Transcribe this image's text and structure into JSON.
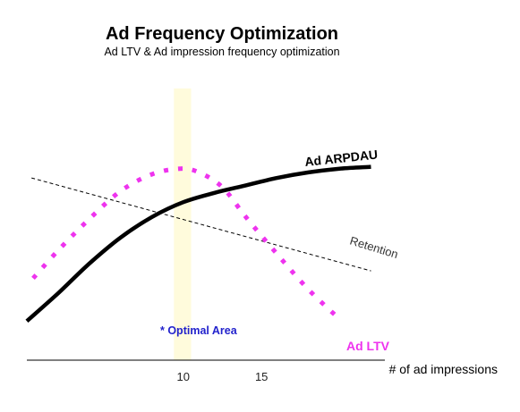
{
  "chart_data": {
    "type": "line",
    "title": "Ad Frequency Optimization",
    "subtitle": "Ad LTV & Ad impression frequency optimization",
    "xlabel": "# of ad impressions",
    "ylabel": "",
    "x_ticks": [
      10,
      15
    ],
    "xlim": [
      0,
      23
    ],
    "ylim": [
      0,
      100
    ],
    "grid": false,
    "legend": "none",
    "optimal_area": {
      "label": "* Optimal Area",
      "x_range": [
        9.4,
        10.5
      ]
    },
    "series": [
      {
        "name": "Ad ARPDAU",
        "style": "solid",
        "color": "#000000",
        "x": [
          0,
          2,
          4,
          6,
          8,
          10,
          12,
          14,
          16,
          18,
          20,
          22
        ],
        "y": [
          9,
          24,
          40,
          54,
          65,
          73,
          78,
          82,
          86,
          89,
          91,
          92
        ]
      },
      {
        "name": "Ad LTV",
        "style": "dotted",
        "color": "#ee33ee",
        "x": [
          0.4,
          2,
          4,
          6,
          8,
          9.8,
          11,
          12.5,
          14,
          16,
          18,
          20
        ],
        "y": [
          32,
          47,
          64,
          79,
          88,
          91,
          89,
          81,
          65,
          45,
          26,
          10
        ]
      },
      {
        "name": "Retention",
        "style": "dashed",
        "color": "#000000",
        "x": [
          0.3,
          22
        ],
        "y": [
          86,
          36
        ]
      }
    ]
  }
}
